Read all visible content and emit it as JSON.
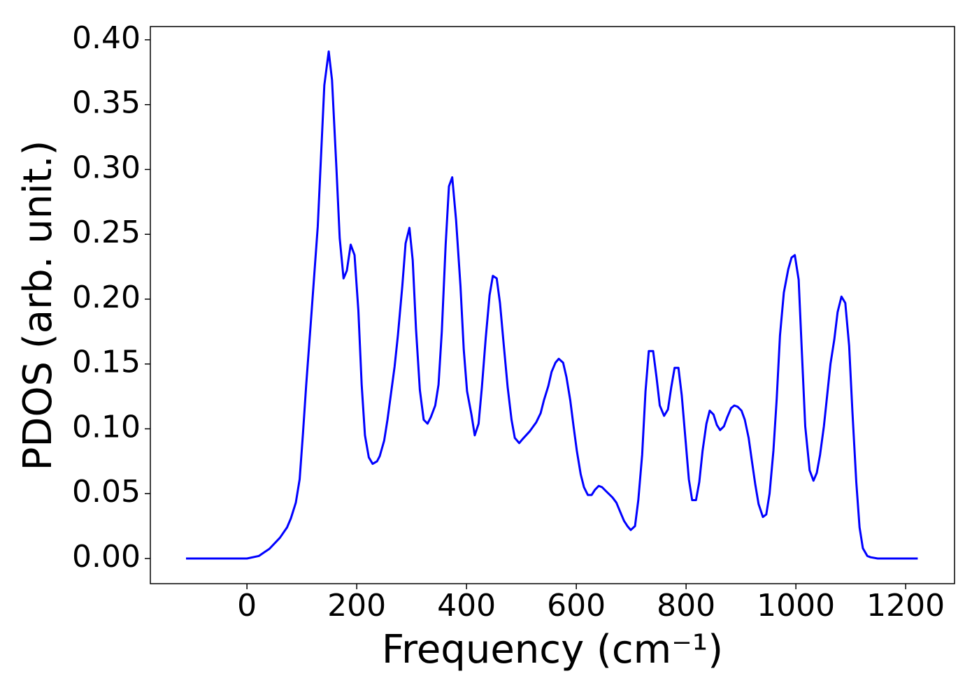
{
  "chart_data": {
    "type": "line",
    "xlabel": "Frequency (cm⁻¹)",
    "ylabel": "PDOS (arb. unit.)",
    "xlim": [
      -176,
      1289
    ],
    "ylim": [
      -0.0194,
      0.4102
    ],
    "xticks": [
      0,
      200,
      400,
      600,
      800,
      1000,
      1200
    ],
    "yticks": [
      {
        "value": 0,
        "label": "0.00"
      },
      {
        "value": 0.05,
        "label": "0.05"
      },
      {
        "value": 0.1,
        "label": "0.10"
      },
      {
        "value": 0.15,
        "label": "0.15"
      },
      {
        "value": 0.2,
        "label": "0.20"
      },
      {
        "value": 0.25,
        "label": "0.25"
      },
      {
        "value": 0.3,
        "label": "0.30"
      },
      {
        "value": 0.35,
        "label": "0.35"
      },
      {
        "value": 0.4,
        "label": "0.40"
      }
    ],
    "grid": false,
    "series": [
      {
        "color": "#0000ff",
        "x": [
          -111,
          0,
          22,
          41,
          60,
          73,
          80,
          89,
          96,
          102,
          108,
          116,
          129,
          141,
          149,
          155,
          163,
          169,
          176,
          182,
          189,
          196,
          203,
          209,
          215,
          222,
          229,
          237,
          242,
          250,
          256,
          269,
          275,
          283,
          289,
          296,
          302,
          308,
          315,
          322,
          329,
          335,
          343,
          349,
          355,
          362,
          368,
          374,
          381,
          389,
          395,
          401,
          409,
          415,
          422,
          428,
          435,
          442,
          448,
          455,
          461,
          468,
          475,
          482,
          488,
          496,
          502,
          515,
          527,
          535,
          541,
          549,
          555,
          562,
          568,
          576,
          582,
          589,
          595,
          601,
          608,
          614,
          621,
          628,
          634,
          641,
          647,
          654,
          666,
          673,
          680,
          687,
          693,
          699,
          707,
          713,
          720,
          726,
          732,
          740,
          746,
          752,
          760,
          767,
          773,
          779,
          786,
          792,
          799,
          805,
          811,
          818,
          824,
          830,
          837,
          843,
          850,
          856,
          862,
          869,
          875,
          882,
          888,
          894,
          901,
          907,
          914,
          920,
          926,
          932,
          940,
          946,
          952,
          959,
          965,
          971,
          978,
          986,
          992,
          998,
          1005,
          1011,
          1017,
          1025,
          1032,
          1038,
          1044,
          1051,
          1057,
          1063,
          1070,
          1076,
          1083,
          1090,
          1097,
          1103,
          1110,
          1116,
          1122,
          1130,
          1136,
          1149,
          1222
        ],
        "values": [
          0,
          0,
          0.002,
          0.0075,
          0.016,
          0.024,
          0.031,
          0.043,
          0.061,
          0.096,
          0.134,
          0.18,
          0.256,
          0.365,
          0.391,
          0.369,
          0.301,
          0.247,
          0.216,
          0.222,
          0.242,
          0.234,
          0.191,
          0.134,
          0.095,
          0.078,
          0.073,
          0.075,
          0.079,
          0.091,
          0.107,
          0.148,
          0.172,
          0.21,
          0.243,
          0.255,
          0.23,
          0.177,
          0.13,
          0.107,
          0.104,
          0.109,
          0.118,
          0.134,
          0.175,
          0.242,
          0.287,
          0.294,
          0.261,
          0.21,
          0.161,
          0.129,
          0.111,
          0.095,
          0.104,
          0.132,
          0.17,
          0.203,
          0.218,
          0.216,
          0.197,
          0.164,
          0.132,
          0.107,
          0.093,
          0.089,
          0.092,
          0.098,
          0.105,
          0.112,
          0.122,
          0.133,
          0.144,
          0.151,
          0.154,
          0.151,
          0.14,
          0.122,
          0.102,
          0.083,
          0.065,
          0.055,
          0.049,
          0.049,
          0.053,
          0.056,
          0.055,
          0.052,
          0.047,
          0.043,
          0.036,
          0.029,
          0.025,
          0.022,
          0.025,
          0.045,
          0.08,
          0.129,
          0.16,
          0.16,
          0.14,
          0.118,
          0.11,
          0.115,
          0.132,
          0.147,
          0.147,
          0.126,
          0.091,
          0.061,
          0.045,
          0.045,
          0.059,
          0.083,
          0.104,
          0.114,
          0.111,
          0.103,
          0.099,
          0.102,
          0.109,
          0.116,
          0.118,
          0.117,
          0.114,
          0.107,
          0.093,
          0.075,
          0.057,
          0.042,
          0.032,
          0.034,
          0.05,
          0.083,
          0.123,
          0.172,
          0.205,
          0.223,
          0.232,
          0.234,
          0.215,
          0.158,
          0.102,
          0.068,
          0.06,
          0.066,
          0.08,
          0.102,
          0.126,
          0.15,
          0.169,
          0.19,
          0.202,
          0.197,
          0.164,
          0.113,
          0.059,
          0.024,
          0.008,
          0.002,
          0.001,
          0,
          0
        ]
      }
    ]
  }
}
